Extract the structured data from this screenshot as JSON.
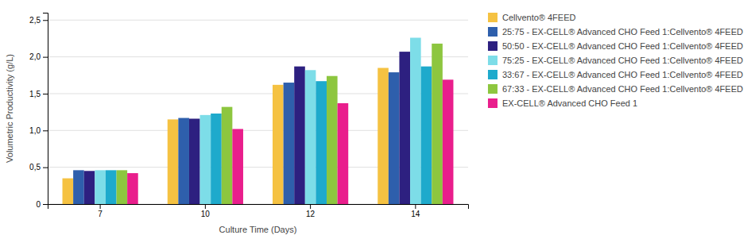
{
  "chart_data": {
    "type": "bar",
    "categories": [
      "7",
      "10",
      "12",
      "14"
    ],
    "series": [
      {
        "name": "Cellvento® 4FEED",
        "color": "#F5C242",
        "values": [
          0.35,
          1.15,
          1.62,
          1.85
        ]
      },
      {
        "name": "25:75 - EX-CELL® Advanced CHO Feed 1:Cellvento® 4FEED",
        "color": "#2E5FAC",
        "values": [
          0.46,
          1.17,
          1.65,
          1.79
        ]
      },
      {
        "name": "50:50 - EX-CELL® Advanced CHO Feed 1:Cellvento® 4FEED",
        "color": "#2D2080",
        "values": [
          0.45,
          1.16,
          1.87,
          2.07
        ]
      },
      {
        "name": "75:25 - EX-CELL® Advanced CHO Feed 1:Cellvento® 4FEED",
        "color": "#7DDDE8",
        "values": [
          0.46,
          1.21,
          1.82,
          2.26
        ]
      },
      {
        "name": "33:67 - EX-CELL® Advanced CHO Feed 1:Cellvento® 4FEED",
        "color": "#1EAACC",
        "values": [
          0.46,
          1.23,
          1.67,
          1.87
        ]
      },
      {
        "name": "67:33 - EX-CELL® Advanced CHO Feed 1:Cellvento® 4FEED",
        "color": "#8DC63F",
        "values": [
          0.46,
          1.32,
          1.74,
          2.18
        ]
      },
      {
        "name": "EX-CELL® Advanced CHO Feed 1",
        "color": "#E91E8C",
        "values": [
          0.42,
          1.02,
          1.37,
          1.69
        ]
      }
    ],
    "xlabel": "Culture Time (Days)",
    "ylabel": "Volumetric Productivity (g/L)",
    "ylim": [
      0,
      2.6
    ],
    "yticks": [
      0,
      {
        "value": 0.5,
        "label": "0,5"
      },
      {
        "value": 1.0,
        "label": "1,0"
      },
      {
        "value": 1.5,
        "label": "1,5"
      },
      {
        "value": 2.0,
        "label": "2,0"
      },
      {
        "value": 2.5,
        "label": "2,5"
      }
    ],
    "grid": true,
    "legend": "right"
  }
}
